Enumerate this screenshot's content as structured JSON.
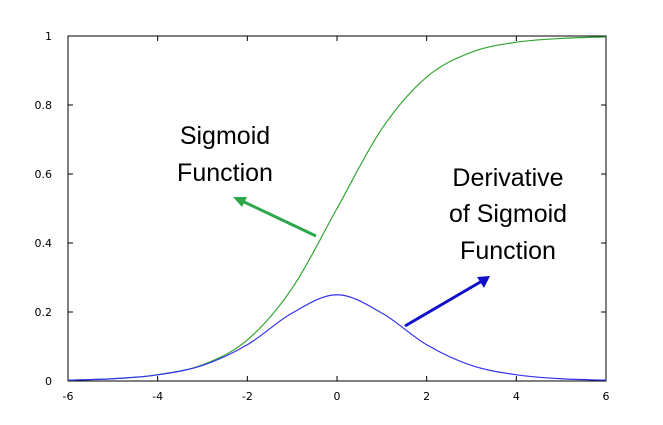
{
  "chart_data": {
    "type": "line",
    "xlim": [
      -6,
      6
    ],
    "ylim": [
      0,
      1
    ],
    "x_ticks": [
      "-6",
      "-4",
      "-2",
      "0",
      "2",
      "4",
      "6"
    ],
    "y_ticks": [
      "0",
      "0.2",
      "0.4",
      "0.6",
      "0.8",
      "1"
    ],
    "grid": false,
    "series": [
      {
        "key": "sigmoid",
        "color": "#33a532",
        "x": [
          -6,
          -5,
          -4,
          -3,
          -2,
          -1,
          0,
          1,
          2,
          3,
          4,
          5,
          6
        ],
        "y": [
          0.0025,
          0.0067,
          0.018,
          0.047,
          0.119,
          0.269,
          0.5,
          0.731,
          0.881,
          0.953,
          0.982,
          0.993,
          0.9975
        ]
      },
      {
        "key": "derivative",
        "color": "#3333ee",
        "x": [
          -6,
          -5,
          -4,
          -3,
          -2,
          -1,
          0,
          1,
          2,
          3,
          4,
          5,
          6
        ],
        "y": [
          0.0025,
          0.0066,
          0.018,
          0.045,
          0.105,
          0.197,
          0.25,
          0.197,
          0.105,
          0.045,
          0.018,
          0.0066,
          0.0025
        ]
      }
    ],
    "annotations": [
      {
        "key": "sigmoid",
        "lines": [
          "Sigmoid",
          "Function"
        ],
        "color": "#2aa84a"
      },
      {
        "key": "derivative",
        "lines": [
          "Derivative",
          "of Sigmoid",
          "Function"
        ],
        "color": "#1010cc"
      }
    ]
  }
}
